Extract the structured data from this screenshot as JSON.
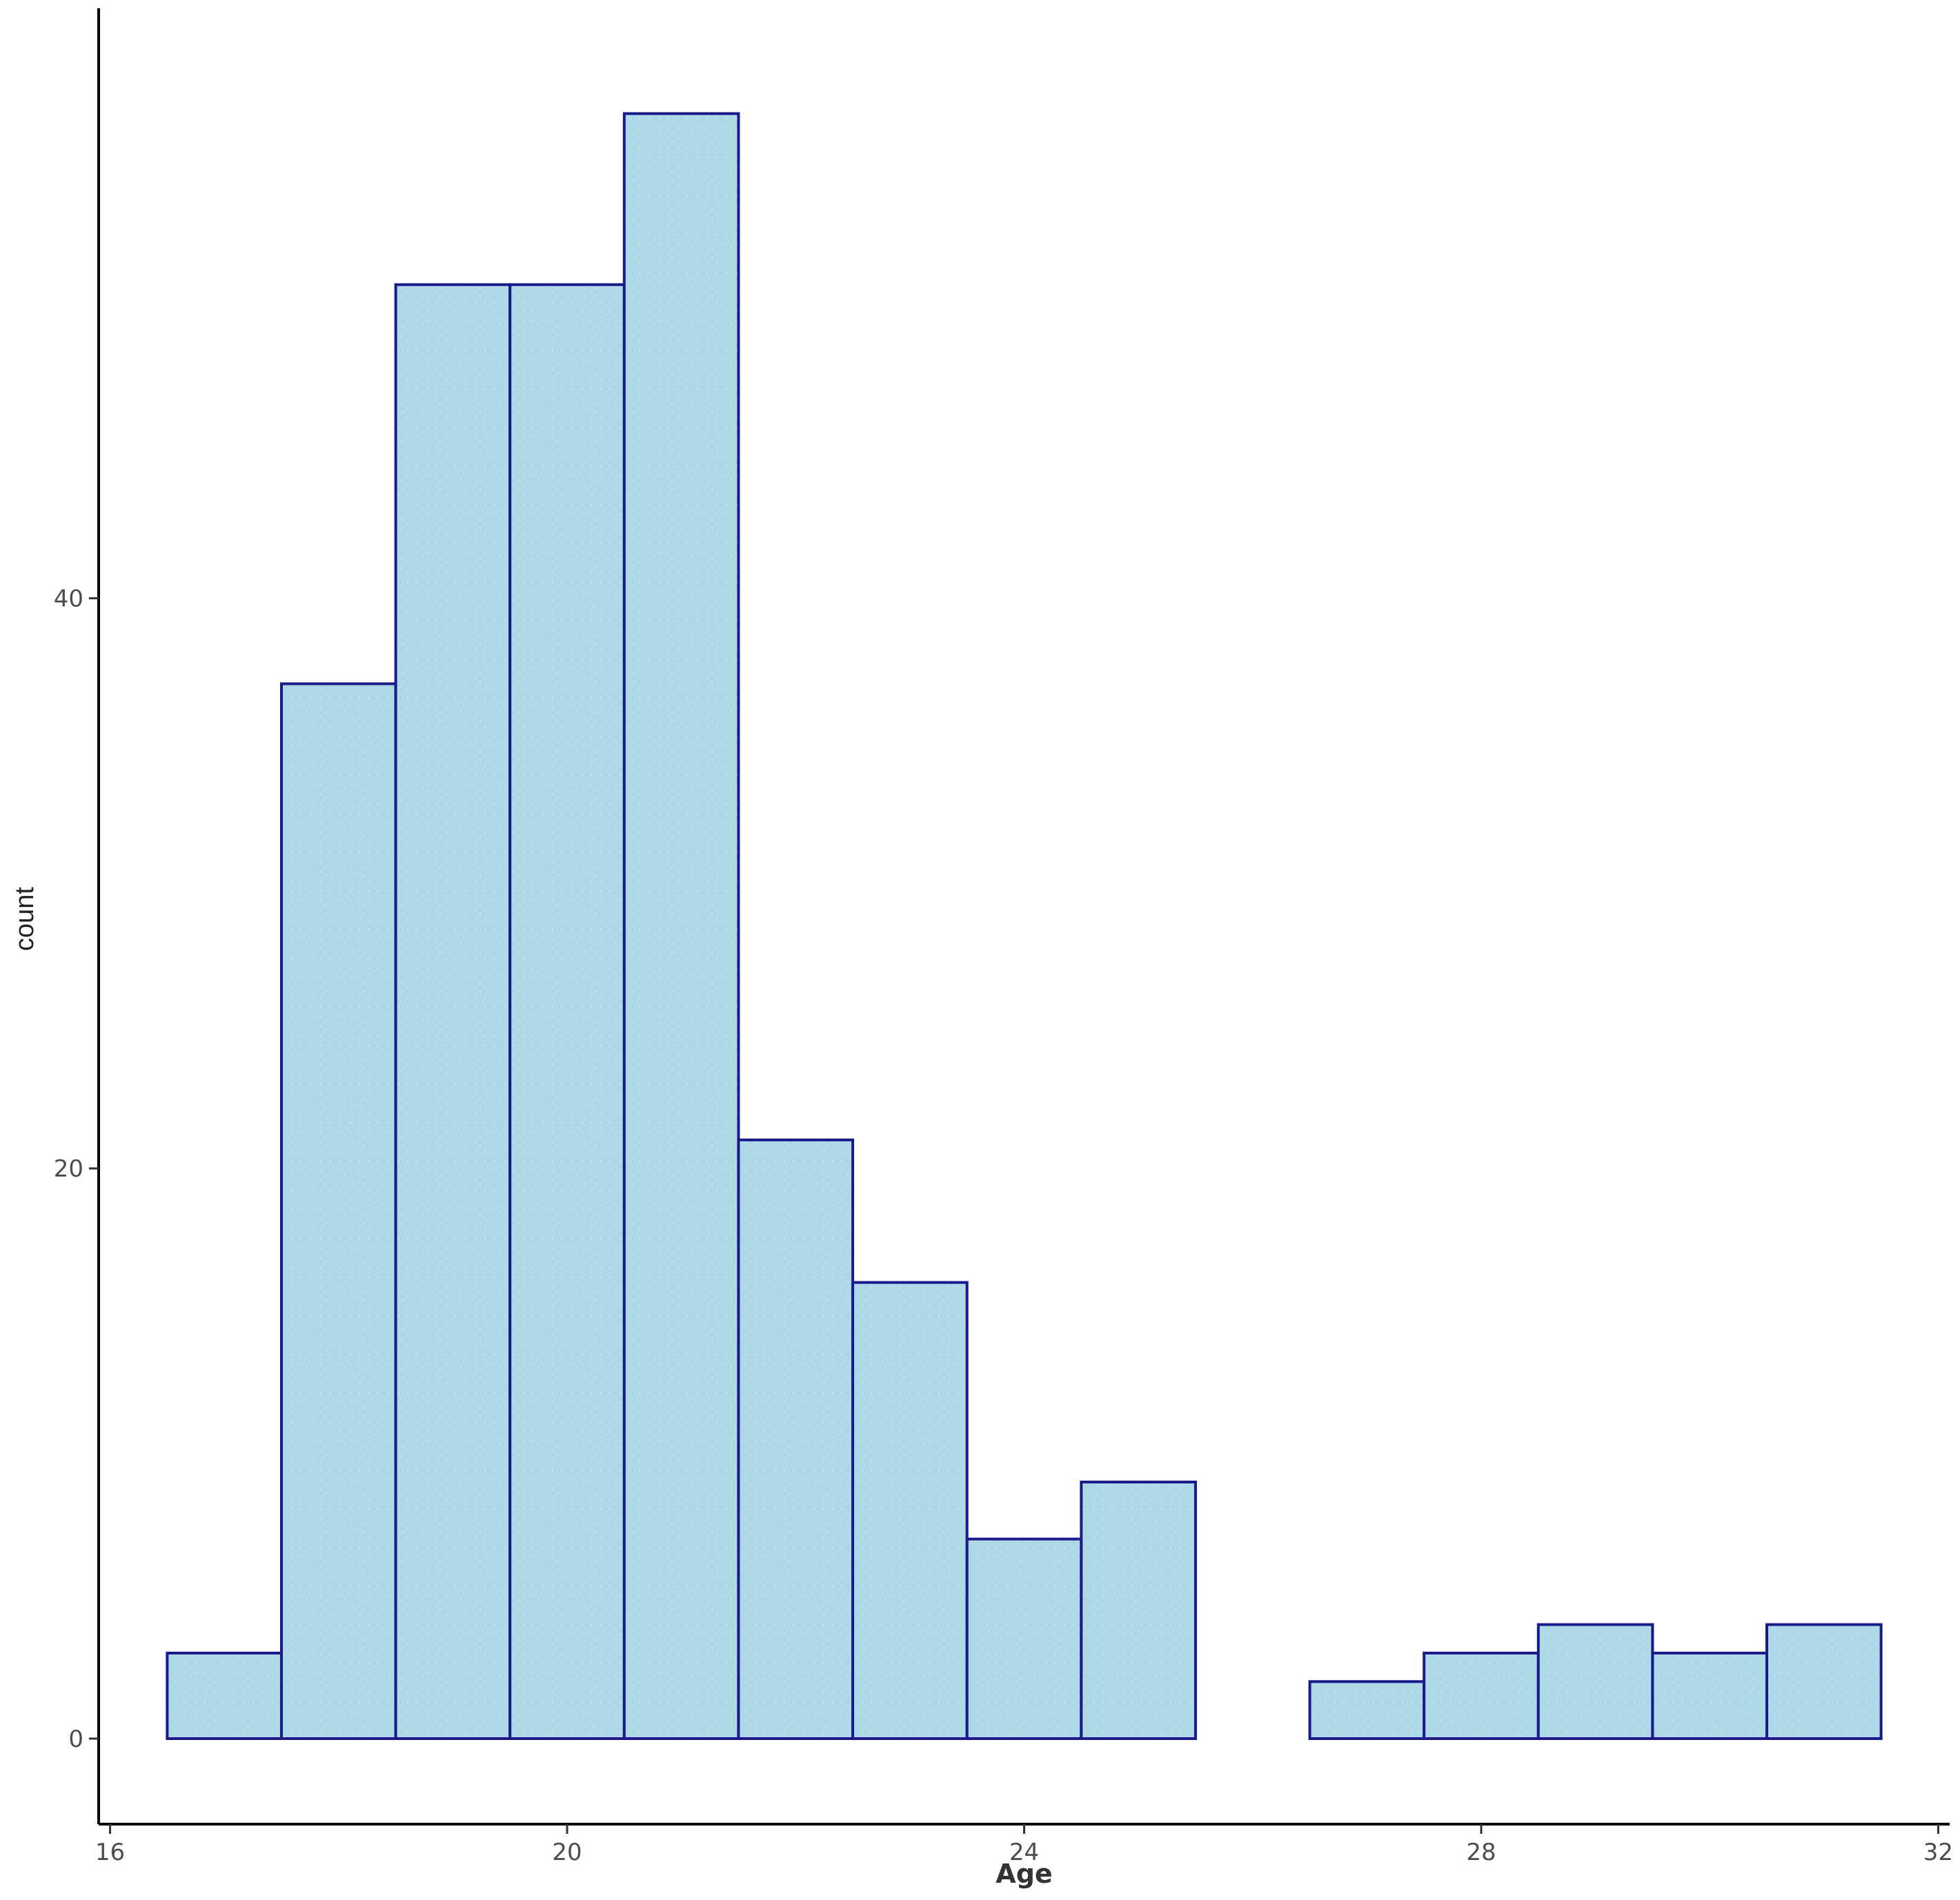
{
  "chart_data": {
    "type": "bar",
    "subtype": "histogram",
    "title": "",
    "xlabel": "Age",
    "ylabel": "count",
    "xlim": [
      15.9,
      32.1
    ],
    "ylim": [
      -3,
      60.5
    ],
    "x_ticks": [
      16,
      20,
      24,
      28,
      32
    ],
    "x_tick_labels": [
      "16",
      "20",
      "24",
      "28",
      "32"
    ],
    "y_ticks": [
      0,
      20,
      40
    ],
    "y_tick_labels": [
      "0",
      "20",
      "40"
    ],
    "bin_width": 1,
    "bins": [
      {
        "x0": 16.5,
        "x1": 17.5,
        "count": 3
      },
      {
        "x0": 17.5,
        "x1": 18.5,
        "count": 37
      },
      {
        "x0": 18.5,
        "x1": 19.5,
        "count": 51
      },
      {
        "x0": 19.5,
        "x1": 20.5,
        "count": 51
      },
      {
        "x0": 20.5,
        "x1": 21.5,
        "count": 57
      },
      {
        "x0": 21.5,
        "x1": 22.5,
        "count": 21
      },
      {
        "x0": 22.5,
        "x1": 23.5,
        "count": 16
      },
      {
        "x0": 23.5,
        "x1": 24.5,
        "count": 7
      },
      {
        "x0": 24.5,
        "x1": 25.5,
        "count": 9
      },
      {
        "x0": 25.5,
        "x1": 26.5,
        "count": 0
      },
      {
        "x0": 26.5,
        "x1": 27.5,
        "count": 2
      },
      {
        "x0": 27.5,
        "x1": 28.5,
        "count": 3
      },
      {
        "x0": 28.5,
        "x1": 29.5,
        "count": 4
      },
      {
        "x0": 29.5,
        "x1": 30.5,
        "count": 3
      },
      {
        "x0": 30.5,
        "x1": 31.5,
        "count": 4
      }
    ],
    "grid": false,
    "legend": "none",
    "colors": {
      "bar_fill": "#add8e6",
      "bar_outline": "#1a1a8c",
      "axis_line": "#000000",
      "tick_text": "#4d4d4d",
      "background": "#ffffff"
    }
  }
}
